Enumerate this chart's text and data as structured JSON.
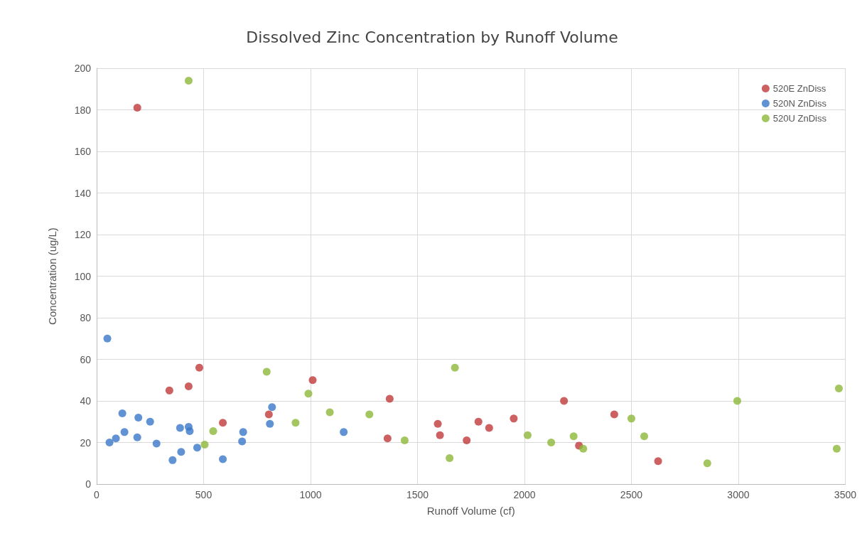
{
  "chart_data": {
    "type": "scatter",
    "title": "Dissolved Zinc Concentration by Runoff Volume",
    "xlabel": "Runoff Volume (cf)",
    "ylabel": "Concentration (ug/L)",
    "xlim": [
      0,
      3500
    ],
    "xticks": [
      0,
      500,
      1000,
      1500,
      2000,
      2500,
      3000,
      3500
    ],
    "ylim": [
      0,
      200
    ],
    "yticks": [
      0,
      20,
      40,
      60,
      80,
      100,
      120,
      140,
      160,
      180,
      200
    ],
    "grid": true,
    "legend": "top right",
    "marker": "circle",
    "series": [
      {
        "name": "520E ZnDiss",
        "color": "#c0393b",
        "x": [
          190,
          340,
          430,
          480,
          590,
          805,
          1010,
          1360,
          1370,
          1595,
          1605,
          1730,
          1785,
          1835,
          1950,
          2185,
          2255,
          2420,
          2625
        ],
        "values": [
          181,
          45,
          47,
          56,
          29.5,
          33.5,
          50,
          22,
          41,
          29,
          23.5,
          21,
          30,
          27,
          31.5,
          40,
          18.5,
          33.5,
          11
        ]
      },
      {
        "name": "520N ZnDiss",
        "color": "#3a78c9",
        "x": [
          50,
          60,
          90,
          120,
          130,
          190,
          195,
          250,
          280,
          355,
          390,
          395,
          430,
          435,
          470,
          590,
          680,
          685,
          810,
          820,
          1155
        ],
        "values": [
          70,
          20,
          22,
          34,
          25,
          22.5,
          32,
          30,
          19.5,
          11.5,
          27,
          15.5,
          27.5,
          25.5,
          17.5,
          12,
          20.5,
          25,
          29,
          37,
          25
        ]
      },
      {
        "name": "520U ZnDiss",
        "color": "#8db83a",
        "x": [
          430,
          505,
          545,
          795,
          930,
          990,
          1090,
          1275,
          1440,
          1650,
          1675,
          2015,
          2125,
          2230,
          2275,
          2500,
          2560,
          2855,
          2995,
          3460,
          3470
        ],
        "values": [
          194,
          19,
          25.5,
          54,
          29.5,
          43.5,
          34.5,
          33.5,
          21,
          12.5,
          56,
          23.5,
          20,
          23,
          17,
          31.5,
          23,
          10,
          40,
          17,
          46
        ]
      }
    ]
  }
}
